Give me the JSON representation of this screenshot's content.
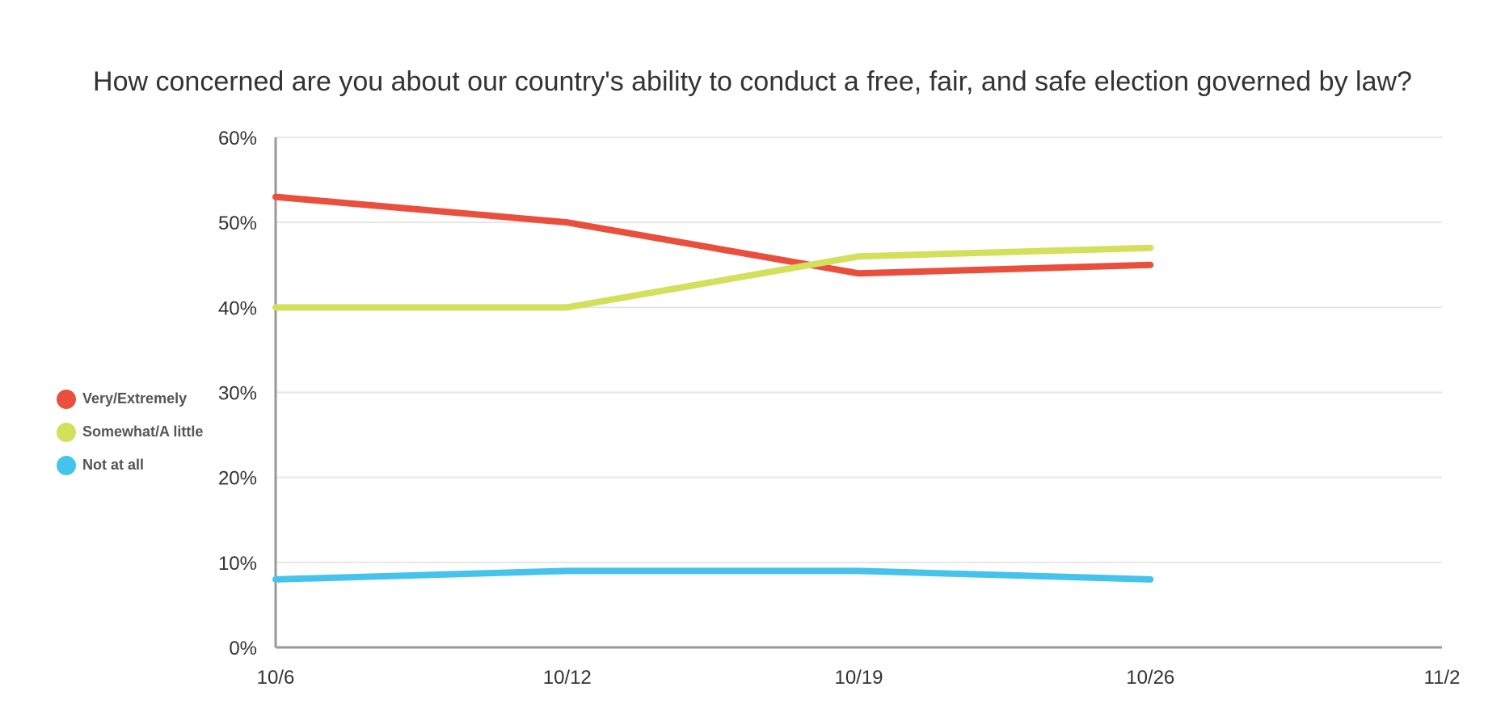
{
  "chart_data": {
    "type": "line",
    "title": "How concerned are you about our country's ability to conduct a free, fair, and safe election governed by law?",
    "xlabel": "",
    "ylabel": "",
    "x": [
      "10/6",
      "10/12",
      "10/19",
      "10/26"
    ],
    "x_ticks": [
      "10/6",
      "10/12",
      "10/19",
      "10/26",
      "11/2"
    ],
    "y_ticks": [
      "0%",
      "10%",
      "20%",
      "30%",
      "40%",
      "50%",
      "60%"
    ],
    "ylim": [
      0,
      60
    ],
    "y_unit": "%",
    "grid": true,
    "legend_position": "left",
    "series": [
      {
        "name": "Very/Extremely",
        "color": "#ea4e3d",
        "values": [
          53,
          50,
          44,
          45
        ]
      },
      {
        "name": "Somewhat/A little",
        "color": "#d3e05c",
        "values": [
          40,
          40,
          46,
          47
        ]
      },
      {
        "name": "Not at all",
        "color": "#45c3ec",
        "values": [
          8,
          9,
          9,
          8
        ]
      }
    ]
  }
}
